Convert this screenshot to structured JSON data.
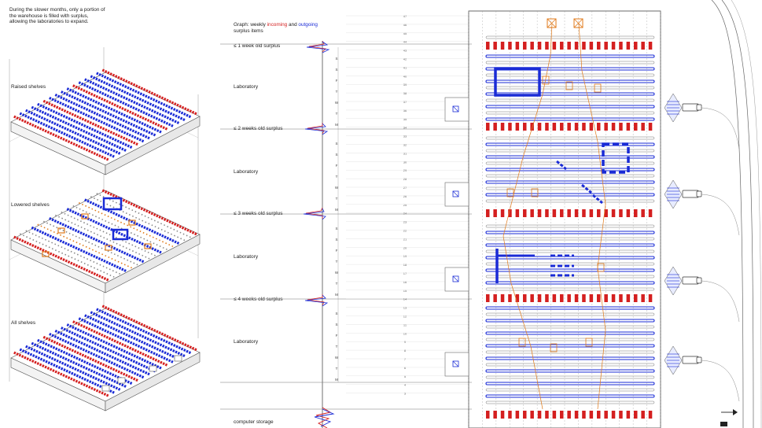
{
  "intro_text": "During the slower months, only a portion of the warehouse is filled with surplus, allowing the laboratories to expand.",
  "iso_labels": [
    "Raised shelves",
    "Lowered shelves",
    "All shelves"
  ],
  "graph_caption": {
    "prefix": "Graph: weekly ",
    "incoming": "incoming",
    "and": " and ",
    "outgoing": "outgoing",
    "suffix": "surplus items"
  },
  "zone_labels": [
    "≤ 1 week old surplus",
    "Laboratory",
    "≤ 2 weeks old surplus",
    "Laboratory",
    "≤ 3 weeks old surplus",
    "Laboratory",
    "≤ 4 weeks old surplus",
    "Laboratory",
    "computer storage"
  ],
  "weekday_letters": [
    "S",
    "S",
    "F",
    "T",
    "W",
    "T",
    "M"
  ],
  "row_numbers": [
    "47",
    "46",
    "45",
    "44",
    "43",
    "42",
    "41",
    "40",
    "39",
    "38",
    "37",
    "36",
    "35",
    "34",
    "33",
    "32",
    "31",
    "30",
    "29",
    "28",
    "27",
    "26",
    "25",
    "24",
    "23",
    "22",
    "21",
    "20",
    "19",
    "18",
    "17",
    "16",
    "15",
    "14",
    "13",
    "12",
    "11",
    "10",
    "9",
    "8",
    "7",
    "6",
    "5",
    "4",
    "3"
  ],
  "colors": {
    "incoming": "#d41f1f",
    "outgoing": "#1a2bd6",
    "route": "#e07a1a",
    "grid": "#9a9a9a"
  },
  "icons": [
    "north-arrow-icon",
    "truck-icon",
    "dock-icon",
    "crate-icon"
  ]
}
